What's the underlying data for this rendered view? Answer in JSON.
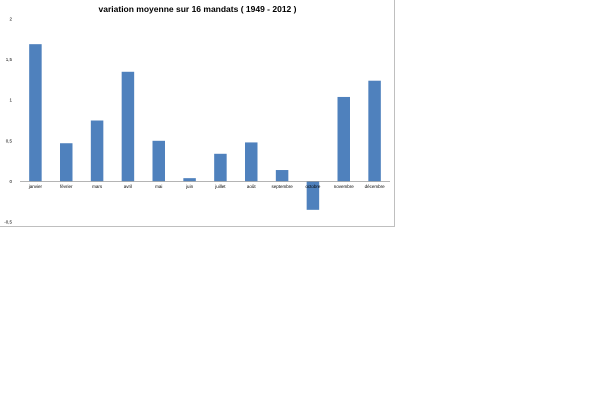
{
  "chart_data": {
    "type": "bar",
    "title": "variation moyenne sur 16 mandats ( 1949 - 2012 )",
    "xlabel": "",
    "ylabel": "",
    "categories": [
      "janvier",
      "février",
      "mars",
      "avril",
      "mai",
      "juin",
      "juillet",
      "août",
      "septembre",
      "octobre",
      "novembre",
      "décembre"
    ],
    "values": [
      1.69,
      0.47,
      0.75,
      1.35,
      0.5,
      0.04,
      0.34,
      0.48,
      0.14,
      -0.35,
      1.04,
      1.24
    ],
    "ylim": [
      -0.5,
      2
    ],
    "yticks": [
      -0.5,
      0,
      0.5,
      1,
      1.5,
      2
    ],
    "ytick_labels": [
      "-0,5",
      "0",
      "0,5",
      "1",
      "1,5",
      "2"
    ],
    "grid": false,
    "legend": "none",
    "bar_color": "#4f81bd"
  }
}
